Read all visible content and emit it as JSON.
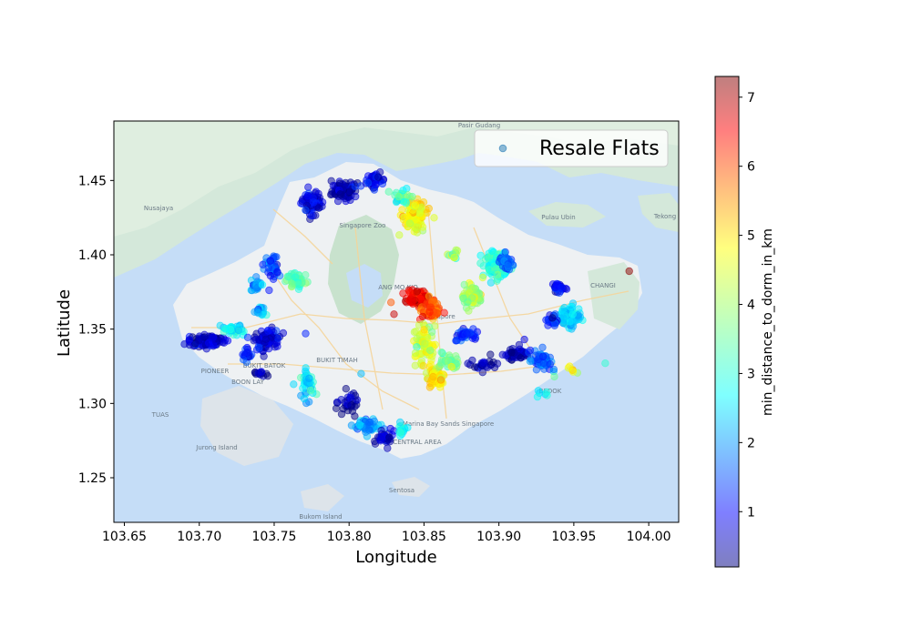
{
  "chart_data": {
    "type": "scatter",
    "xlabel": "Longitude",
    "ylabel": "Latitude",
    "xlim": [
      103.643,
      104.02
    ],
    "ylim": [
      1.22,
      1.49
    ],
    "xticks": [
      "103.65",
      "103.70",
      "103.75",
      "103.80",
      "103.85",
      "103.90",
      "103.95",
      "104.00"
    ],
    "yticks": [
      "1.25",
      "1.30",
      "1.35",
      "1.40",
      "1.45"
    ],
    "legend": {
      "label": "Resale Flats",
      "location": "top-right"
    },
    "colorbar": {
      "label": "min_distance_to_dorm_in_km",
      "range": [
        0.2,
        7.3
      ],
      "ticks": [
        "1",
        "2",
        "3",
        "4",
        "5",
        "6",
        "7"
      ],
      "colormap": "jet",
      "alpha": 0.5
    },
    "basemap": {
      "labels": [
        "Pasir Gudang",
        "Singapore Zoo",
        "Singapore",
        "Marina Bay Sands Singapore",
        "Jurong Island",
        "Sentosa",
        "Pulau Ubin",
        "Tekong",
        "Nusajaya",
        "Bukom Island",
        "CHANGI",
        "ANG MO KIO",
        "PIONEER",
        "BOON LAY",
        "BUKIT BATOK",
        "BUKIT TIMAH",
        "BEDOK",
        "TUAS",
        "CENTRAL AREA"
      ]
    },
    "clusters": [
      {
        "x": 103.775,
        "y": 1.435,
        "sx": 0.006,
        "sy": 0.007,
        "n": 70,
        "v": 0.8
      },
      {
        "x": 103.797,
        "y": 1.443,
        "sx": 0.007,
        "sy": 0.005,
        "n": 90,
        "v": 0.5
      },
      {
        "x": 103.818,
        "y": 1.45,
        "sx": 0.005,
        "sy": 0.004,
        "n": 40,
        "v": 0.9
      },
      {
        "x": 103.843,
        "y": 1.427,
        "sx": 0.007,
        "sy": 0.009,
        "n": 110,
        "v": 4.6
      },
      {
        "x": 103.835,
        "y": 1.44,
        "sx": 0.005,
        "sy": 0.004,
        "n": 25,
        "v": 3.3
      },
      {
        "x": 103.748,
        "y": 1.393,
        "sx": 0.004,
        "sy": 0.007,
        "n": 40,
        "v": 1.5
      },
      {
        "x": 103.765,
        "y": 1.382,
        "sx": 0.006,
        "sy": 0.005,
        "n": 50,
        "v": 3.4
      },
      {
        "x": 103.738,
        "y": 1.38,
        "sx": 0.004,
        "sy": 0.004,
        "n": 25,
        "v": 2.2
      },
      {
        "x": 103.705,
        "y": 1.342,
        "sx": 0.01,
        "sy": 0.003,
        "n": 100,
        "v": 0.6
      },
      {
        "x": 103.722,
        "y": 1.35,
        "sx": 0.006,
        "sy": 0.003,
        "n": 40,
        "v": 2.7
      },
      {
        "x": 103.745,
        "y": 1.343,
        "sx": 0.007,
        "sy": 0.006,
        "n": 90,
        "v": 0.8
      },
      {
        "x": 103.732,
        "y": 1.333,
        "sx": 0.003,
        "sy": 0.005,
        "n": 20,
        "v": 1.2
      },
      {
        "x": 103.742,
        "y": 1.362,
        "sx": 0.003,
        "sy": 0.003,
        "n": 15,
        "v": 2.4
      },
      {
        "x": 103.772,
        "y": 1.312,
        "sx": 0.004,
        "sy": 0.009,
        "n": 35,
        "v": 2.8
      },
      {
        "x": 103.74,
        "y": 1.32,
        "sx": 0.004,
        "sy": 0.002,
        "n": 12,
        "v": 0.5
      },
      {
        "x": 103.8,
        "y": 1.3,
        "sx": 0.006,
        "sy": 0.006,
        "n": 30,
        "v": 0.3
      },
      {
        "x": 103.812,
        "y": 1.285,
        "sx": 0.007,
        "sy": 0.005,
        "n": 45,
        "v": 2.1
      },
      {
        "x": 103.825,
        "y": 1.276,
        "sx": 0.005,
        "sy": 0.004,
        "n": 30,
        "v": 0.6
      },
      {
        "x": 103.835,
        "y": 1.282,
        "sx": 0.004,
        "sy": 0.003,
        "n": 15,
        "v": 2.7
      },
      {
        "x": 103.845,
        "y": 1.371,
        "sx": 0.005,
        "sy": 0.004,
        "n": 90,
        "v": 6.5
      },
      {
        "x": 103.855,
        "y": 1.362,
        "sx": 0.005,
        "sy": 0.006,
        "n": 60,
        "v": 5.7
      },
      {
        "x": 103.85,
        "y": 1.34,
        "sx": 0.006,
        "sy": 0.01,
        "n": 70,
        "v": 4.3
      },
      {
        "x": 103.858,
        "y": 1.318,
        "sx": 0.006,
        "sy": 0.007,
        "n": 60,
        "v": 4.8
      },
      {
        "x": 103.868,
        "y": 1.328,
        "sx": 0.005,
        "sy": 0.005,
        "n": 30,
        "v": 3.7
      },
      {
        "x": 103.878,
        "y": 1.346,
        "sx": 0.006,
        "sy": 0.004,
        "n": 35,
        "v": 1.4
      },
      {
        "x": 103.882,
        "y": 1.372,
        "sx": 0.006,
        "sy": 0.006,
        "n": 70,
        "v": 4.0
      },
      {
        "x": 103.87,
        "y": 1.4,
        "sx": 0.003,
        "sy": 0.003,
        "n": 12,
        "v": 3.8
      },
      {
        "x": 103.898,
        "y": 1.393,
        "sx": 0.007,
        "sy": 0.007,
        "n": 110,
        "v": 3.1
      },
      {
        "x": 103.905,
        "y": 1.395,
        "sx": 0.004,
        "sy": 0.004,
        "n": 30,
        "v": 1.6
      },
      {
        "x": 103.89,
        "y": 1.325,
        "sx": 0.006,
        "sy": 0.004,
        "n": 25,
        "v": 0.5
      },
      {
        "x": 103.912,
        "y": 1.333,
        "sx": 0.007,
        "sy": 0.003,
        "n": 50,
        "v": 0.5
      },
      {
        "x": 103.928,
        "y": 1.329,
        "sx": 0.006,
        "sy": 0.006,
        "n": 50,
        "v": 1.7
      },
      {
        "x": 103.948,
        "y": 1.358,
        "sx": 0.006,
        "sy": 0.006,
        "n": 80,
        "v": 2.6
      },
      {
        "x": 103.94,
        "y": 1.378,
        "sx": 0.004,
        "sy": 0.003,
        "n": 25,
        "v": 1.0
      },
      {
        "x": 103.935,
        "y": 1.356,
        "sx": 0.003,
        "sy": 0.004,
        "n": 20,
        "v": 1.2
      },
      {
        "x": 103.948,
        "y": 1.322,
        "sx": 0.003,
        "sy": 0.002,
        "n": 6,
        "v": 4.8
      },
      {
        "x": 103.929,
        "y": 1.307,
        "sx": 0.004,
        "sy": 0.002,
        "n": 6,
        "v": 2.8
      }
    ],
    "points": [
      {
        "x": 103.987,
        "y": 1.389,
        "v": 7.2
      },
      {
        "x": 103.83,
        "y": 1.36,
        "v": 6.8
      },
      {
        "x": 103.828,
        "y": 1.368,
        "v": 5.8
      },
      {
        "x": 103.971,
        "y": 1.327,
        "v": 3.2
      },
      {
        "x": 103.771,
        "y": 1.347,
        "v": 1.3
      },
      {
        "x": 103.808,
        "y": 1.32,
        "v": 2.4
      },
      {
        "x": 103.917,
        "y": 1.343,
        "v": 0.9
      },
      {
        "x": 103.937,
        "y": 1.318,
        "v": 3.6
      }
    ]
  }
}
